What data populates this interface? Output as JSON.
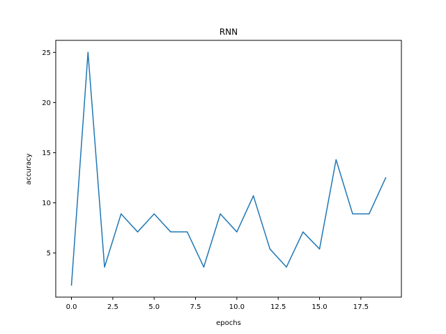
{
  "chart_data": {
    "type": "line",
    "title": "RNN",
    "xlabel": "epochs",
    "ylabel": "accuracy",
    "xlim": [
      -0.95,
      19.95
    ],
    "ylim": [
      0.6,
      26.2
    ],
    "xticks": [
      0.0,
      2.5,
      5.0,
      7.5,
      10.0,
      12.5,
      15.0,
      17.5
    ],
    "xtick_labels": [
      "0.0",
      "2.5",
      "5.0",
      "7.5",
      "10.0",
      "12.5",
      "15.0",
      "17.5"
    ],
    "yticks": [
      5,
      10,
      15,
      20,
      25
    ],
    "ytick_labels": [
      "5",
      "10",
      "15",
      "20",
      "25"
    ],
    "grid": false,
    "series": [
      {
        "color": "#1f77b4",
        "x": [
          0,
          1,
          2,
          3,
          4,
          5,
          6,
          7,
          8,
          9,
          10,
          11,
          12,
          13,
          14,
          15,
          16,
          17,
          18,
          19
        ],
        "values": [
          1.8,
          25.0,
          3.6,
          8.9,
          7.1,
          8.9,
          7.1,
          7.1,
          3.6,
          8.9,
          7.1,
          10.7,
          5.4,
          3.6,
          7.1,
          5.4,
          14.3,
          8.9,
          8.9,
          12.5
        ]
      }
    ]
  }
}
